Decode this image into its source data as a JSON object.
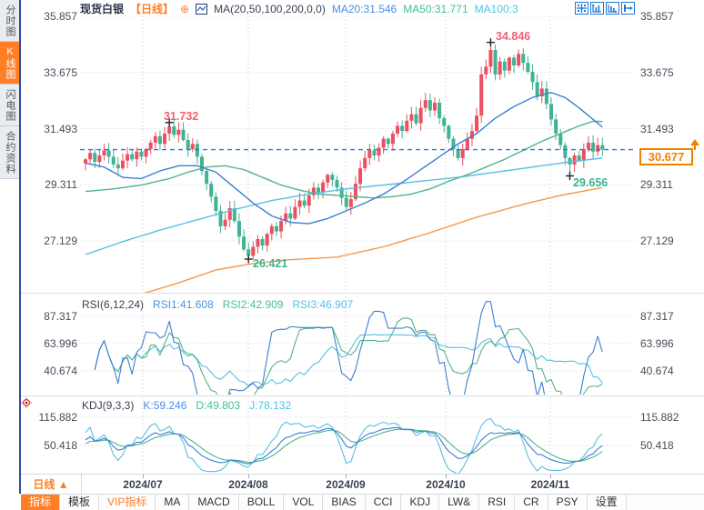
{
  "header": {
    "title": "现货白银",
    "period_tag": "【日线】",
    "add_icon": "⊕",
    "ma_label": "MA(20,50,100,200,0,0)",
    "ma20_text": "MA20:31.546",
    "ma50_text": "MA50:31.771",
    "ma100_text": "MA100:3"
  },
  "header_icons": [
    "crosshair",
    "y-axis-scale",
    "x-axis-scale",
    "pan-right"
  ],
  "sidebar": {
    "items": [
      {
        "label": "分时图",
        "active": false
      },
      {
        "label": "K线图",
        "active": true
      },
      {
        "label": "闪电图",
        "active": false
      },
      {
        "label": "合约资料",
        "active": false
      }
    ]
  },
  "annotations": {
    "high_jul": "31.732",
    "high_oct": "34.846",
    "low_aug": "26.421",
    "low_nov": "29.656",
    "current_price": "30.677"
  },
  "rsi_panel": {
    "name": "RSI(6,12,24)",
    "rsi1_text": "RSI1:41.608",
    "rsi2_text": "RSI2:42.909",
    "rsi3_text": "RSI3:46.907"
  },
  "kdj_panel": {
    "name": "KDJ(9,3,3)",
    "k_text": "K:59.246",
    "d_text": "D:49.803",
    "j_text": "J:78.132"
  },
  "xaxis": {
    "period_label": "日线 ▲",
    "months": [
      "2024/07",
      "2024/08",
      "2024/09",
      "2024/10",
      "2024/11"
    ]
  },
  "bottom_toolbar": {
    "items": [
      {
        "label": "指标",
        "style": "active"
      },
      {
        "label": "模板",
        "style": ""
      },
      {
        "label": "VIP指标",
        "style": "vip"
      },
      {
        "label": "MA",
        "style": ""
      },
      {
        "label": "MACD",
        "style": ""
      },
      {
        "label": "BOLL",
        "style": ""
      },
      {
        "label": "VOL",
        "style": ""
      },
      {
        "label": "BIAS",
        "style": ""
      },
      {
        "label": "CCI",
        "style": ""
      },
      {
        "label": "KDJ",
        "style": ""
      },
      {
        "label": "LW&",
        "style": ""
      },
      {
        "label": "RSI",
        "style": ""
      },
      {
        "label": "CR",
        "style": ""
      },
      {
        "label": "PSY",
        "style": ""
      },
      {
        "label": "设置",
        "style": ""
      }
    ]
  },
  "colors": {
    "up_candle": "#ee4f60",
    "down_candle": "#41b293",
    "ma20_line": "#3d7fd0",
    "ma50_line": "#52b389",
    "ma100_line": "#57bfe3",
    "ma200_line": "#f29a4e",
    "current_price_line": "#2080e0",
    "accent_orange": "#ff7e26",
    "price_box_orange": "#f08100",
    "anno_red": "#f25f72",
    "anno_green": "#3db392",
    "grid": "#d3d8df",
    "month_grid": "#bcc7d6"
  },
  "chart_data": {
    "type": "candlestick+indicators",
    "symbol": "现货白银",
    "period": "日线",
    "x_months": [
      "2024/07",
      "2024/08",
      "2024/09",
      "2024/10",
      "2024/11"
    ],
    "price_ticks": [
      35.857,
      33.675,
      31.493,
      29.311,
      27.129
    ],
    "open_first": 30.15,
    "closes": [
      30.3,
      30.55,
      30.2,
      30.45,
      30.65,
      30.4,
      30.1,
      29.95,
      30.25,
      30.5,
      30.3,
      30.6,
      30.4,
      30.7,
      30.95,
      31.2,
      30.9,
      31.3,
      31.58,
      31.25,
      31.45,
      31.05,
      30.7,
      30.9,
      30.4,
      29.85,
      29.35,
      28.85,
      28.3,
      27.7,
      27.95,
      28.4,
      27.9,
      27.3,
      26.8,
      26.55,
      26.9,
      27.2,
      26.95,
      27.4,
      27.7,
      27.5,
      27.9,
      28.2,
      28.0,
      28.45,
      28.7,
      28.5,
      28.9,
      29.2,
      29.0,
      29.4,
      29.7,
      29.5,
      29.2,
      28.8,
      28.45,
      28.75,
      29.35,
      29.95,
      30.35,
      30.65,
      30.45,
      30.75,
      31.1,
      30.9,
      31.3,
      31.6,
      31.4,
      31.8,
      32.05,
      31.7,
      32.3,
      32.6,
      32.2,
      32.5,
      31.9,
      31.6,
      31.1,
      30.7,
      30.35,
      30.7,
      31.1,
      31.4,
      32.0,
      33.6,
      33.9,
      34.55,
      33.6,
      34.1,
      33.75,
      34.25,
      33.95,
      34.4,
      34.05,
      33.7,
      33.3,
      32.75,
      33.05,
      32.45,
      31.85,
      31.3,
      30.85,
      30.35,
      30.1,
      30.45,
      30.25,
      30.7,
      30.95,
      30.6,
      30.85,
      30.677
    ],
    "extremes": [
      {
        "index": 18,
        "type": "high",
        "value": 31.732
      },
      {
        "index": 35,
        "type": "low",
        "value": 26.421
      },
      {
        "index": 87,
        "type": "high",
        "value": 34.846
      },
      {
        "index": 104,
        "type": "low",
        "value": 29.656
      }
    ],
    "last_close": 30.677,
    "ma_current": {
      "ma20": 31.546,
      "ma50": 31.771,
      "ma100_truncated": "3"
    },
    "ma_polylines": {
      "ma20": [
        [
          0,
          30.15
        ],
        [
          4,
          30.0
        ],
        [
          8,
          29.6
        ],
        [
          12,
          29.55
        ],
        [
          16,
          29.85
        ],
        [
          20,
          30.05
        ],
        [
          24,
          30.05
        ],
        [
          28,
          29.8
        ],
        [
          32,
          29.2
        ],
        [
          36,
          28.6
        ],
        [
          40,
          28.1
        ],
        [
          44,
          27.85
        ],
        [
          48,
          27.8
        ],
        [
          52,
          28.0
        ],
        [
          56,
          28.3
        ],
        [
          60,
          28.6
        ],
        [
          64,
          28.95
        ],
        [
          68,
          29.4
        ],
        [
          72,
          29.9
        ],
        [
          76,
          30.4
        ],
        [
          80,
          30.9
        ],
        [
          84,
          31.3
        ],
        [
          88,
          31.9
        ],
        [
          92,
          32.35
        ],
        [
          96,
          32.7
        ],
        [
          100,
          32.9
        ],
        [
          103,
          32.7
        ],
        [
          106,
          32.3
        ],
        [
          109,
          31.85
        ],
        [
          111,
          31.55
        ]
      ],
      "ma50": [
        [
          0,
          29.05
        ],
        [
          6,
          29.15
        ],
        [
          12,
          29.3
        ],
        [
          18,
          29.55
        ],
        [
          22,
          29.8
        ],
        [
          26,
          30.0
        ],
        [
          30,
          30.05
        ],
        [
          34,
          29.9
        ],
        [
          38,
          29.6
        ],
        [
          42,
          29.3
        ],
        [
          46,
          29.1
        ],
        [
          50,
          28.95
        ],
        [
          54,
          28.9
        ],
        [
          58,
          28.85
        ],
        [
          62,
          28.8
        ],
        [
          66,
          28.85
        ],
        [
          70,
          28.95
        ],
        [
          74,
          29.15
        ],
        [
          78,
          29.45
        ],
        [
          82,
          29.7
        ],
        [
          86,
          30.0
        ],
        [
          90,
          30.3
        ],
        [
          94,
          30.65
        ],
        [
          98,
          31.0
        ],
        [
          102,
          31.3
        ],
        [
          106,
          31.6
        ],
        [
          109,
          31.78
        ],
        [
          111,
          31.77
        ]
      ],
      "ma100": [
        [
          0,
          26.6
        ],
        [
          8,
          27.1
        ],
        [
          16,
          27.55
        ],
        [
          24,
          27.95
        ],
        [
          32,
          28.35
        ],
        [
          40,
          28.7
        ],
        [
          48,
          28.95
        ],
        [
          56,
          29.15
        ],
        [
          64,
          29.3
        ],
        [
          72,
          29.45
        ],
        [
          80,
          29.6
        ],
        [
          88,
          29.8
        ],
        [
          96,
          30.0
        ],
        [
          104,
          30.2
        ],
        [
          111,
          30.35
        ]
      ],
      "ma200": [
        [
          10,
          24.95
        ],
        [
          20,
          25.5
        ],
        [
          28,
          26.0
        ],
        [
          36,
          26.25
        ],
        [
          44,
          26.4
        ],
        [
          54,
          26.5
        ],
        [
          64,
          26.9
        ],
        [
          74,
          27.45
        ],
        [
          84,
          28.05
        ],
        [
          94,
          28.55
        ],
        [
          102,
          28.9
        ],
        [
          108,
          29.1
        ],
        [
          111,
          29.2
        ]
      ]
    },
    "rsi": {
      "periods": [
        6,
        12,
        24
      ],
      "current": [
        41.608,
        42.909,
        46.907
      ],
      "ticks": [
        87.317,
        63.996,
        40.674
      ]
    },
    "kdj": {
      "params": [
        9,
        3,
        3
      ],
      "current": {
        "k": 59.246,
        "d": 49.803,
        "j": 78.132
      },
      "ticks": [
        115.882,
        50.418
      ]
    }
  }
}
